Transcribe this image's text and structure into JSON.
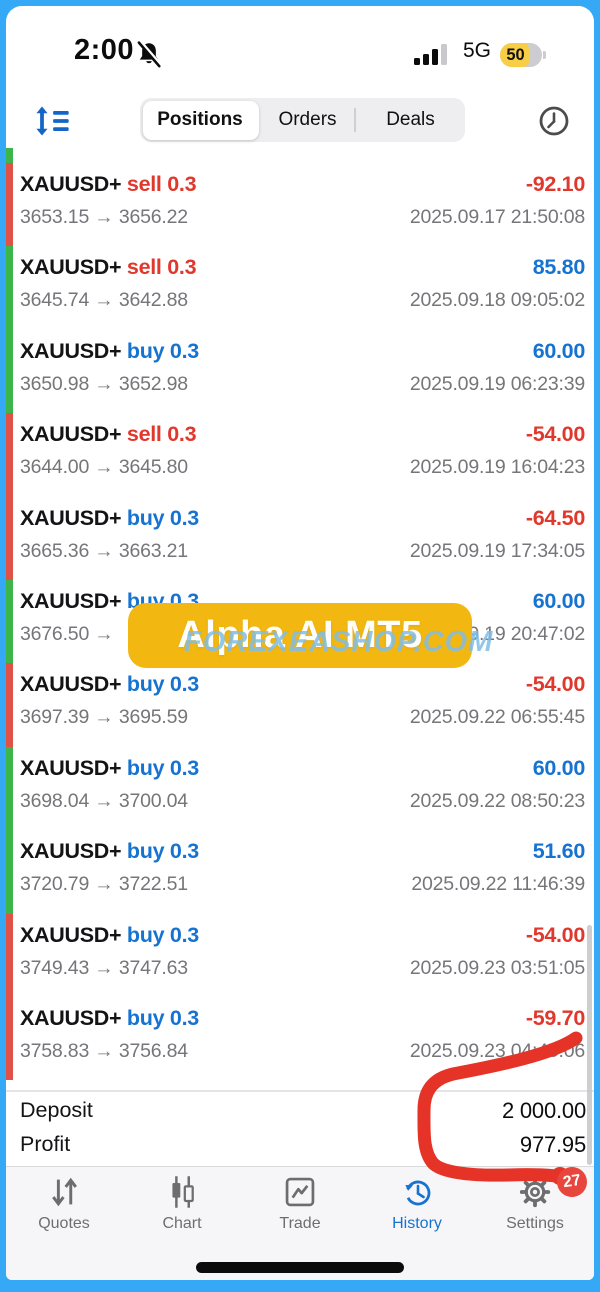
{
  "status_bar": {
    "time": "2:00",
    "network": "5G",
    "battery_level": "50"
  },
  "toolbar": {
    "tabs": [
      {
        "label": "Positions",
        "selected": true
      },
      {
        "label": "Orders",
        "selected": false
      },
      {
        "label": "Deals",
        "selected": false
      }
    ]
  },
  "icons": {
    "sort-icon": "blue up-down arrow with list lines",
    "muted-bell-icon": "bell with slash",
    "history-clock-icon": "clock outline",
    "quotes-icon": "down-up arrows",
    "chart-icon": "candlesticks",
    "trade-icon": "boxed line chart",
    "history-tab-icon": "clock with counterclockwise arrow",
    "settings-icon": "gear"
  },
  "positions": [
    {
      "symbol": "XAUUSD+",
      "side": "sell",
      "volume": "0.3",
      "prices": "3653.15 → 3656.22",
      "profit": "-92.10",
      "datetime": "2025.09.17 21:50:08",
      "result": "loss"
    },
    {
      "symbol": "XAUUSD+",
      "side": "sell",
      "volume": "0.3",
      "prices": "3645.74 → 3642.88",
      "profit": "85.80",
      "datetime": "2025.09.18 09:05:02",
      "result": "win"
    },
    {
      "symbol": "XAUUSD+",
      "side": "buy",
      "volume": "0.3",
      "prices": "3650.98 → 3652.98",
      "profit": "60.00",
      "datetime": "2025.09.19 06:23:39",
      "result": "win"
    },
    {
      "symbol": "XAUUSD+",
      "side": "sell",
      "volume": "0.3",
      "prices": "3644.00 → 3645.80",
      "profit": "-54.00",
      "datetime": "2025.09.19 16:04:23",
      "result": "loss"
    },
    {
      "symbol": "XAUUSD+",
      "side": "buy",
      "volume": "0.3",
      "prices": "3665.36 → 3663.21",
      "profit": "-64.50",
      "datetime": "2025.09.19 17:34:05",
      "result": "loss"
    },
    {
      "symbol": "XAUUSD+",
      "side": "buy",
      "volume": "0.3",
      "prices": "3676.50 →",
      "profit": "60.00",
      "datetime": "2025.09.19 20:47:02",
      "result": "win"
    },
    {
      "symbol": "XAUUSD+",
      "side": "buy",
      "volume": "0.3",
      "prices": "3697.39 → 3695.59",
      "profit": "-54.00",
      "datetime": "2025.09.22 06:55:45",
      "result": "loss"
    },
    {
      "symbol": "XAUUSD+",
      "side": "buy",
      "volume": "0.3",
      "prices": "3698.04 → 3700.04",
      "profit": "60.00",
      "datetime": "2025.09.22 08:50:23",
      "result": "win"
    },
    {
      "symbol": "XAUUSD+",
      "side": "buy",
      "volume": "0.3",
      "prices": "3720.79 → 3722.51",
      "profit": "51.60",
      "datetime": "2025.09.22 11:46:39",
      "result": "win"
    },
    {
      "symbol": "XAUUSD+",
      "side": "buy",
      "volume": "0.3",
      "prices": "3749.43 → 3747.63",
      "profit": "-54.00",
      "datetime": "2025.09.23 03:51:05",
      "result": "loss"
    },
    {
      "symbol": "XAUUSD+",
      "side": "buy",
      "volume": "0.3",
      "prices": "3758.83 → 3756.84",
      "profit": "-59.70",
      "datetime": "2025.09.23 04:45:06",
      "result": "loss"
    }
  ],
  "watermark": {
    "badge_text": "Alpha AI MT5",
    "overlay_text": "FOREXEASHOP.COM"
  },
  "summary": {
    "deposit_label": "Deposit",
    "deposit_value": "2 000.00",
    "profit_label": "Profit",
    "profit_value": "977.95"
  },
  "tab_bar": {
    "items": [
      {
        "label": "Quotes",
        "active": false
      },
      {
        "label": "Chart",
        "active": false
      },
      {
        "label": "Trade",
        "active": false
      },
      {
        "label": "History",
        "active": true
      },
      {
        "label": "Settings",
        "active": false,
        "badge": "27"
      }
    ],
    "settings_badge": "27"
  },
  "colors": {
    "frame_blue": "#35a9f6",
    "buy_blue": "#1673d1",
    "sell_red": "#e0382c",
    "strip_green": "#3cb54a",
    "strip_red": "#e05248",
    "badge_yellow": "#f2b711",
    "marker_red": "#e53327",
    "battery_yellow": "#f7ce46",
    "nav_badge_red": "#e8463c"
  }
}
